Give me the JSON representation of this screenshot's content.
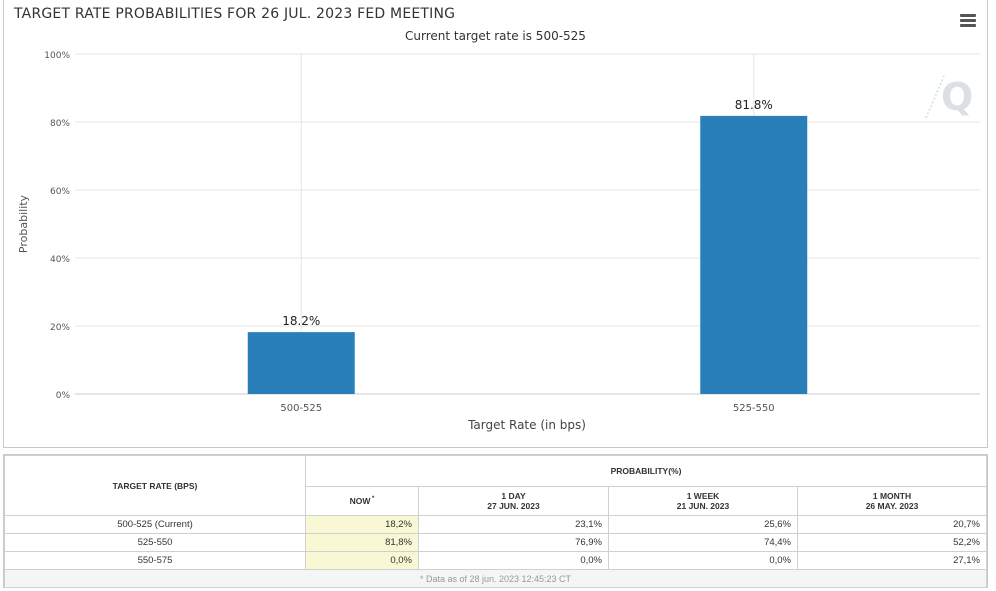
{
  "chart": {
    "title": "TARGET RATE PROBABILITIES FOR 26 JUL. 2023 FED MEETING",
    "subtitle": "Current target rate is 500-525",
    "logo": "Q"
  },
  "colors": {
    "bar": "#2980b9",
    "grid": "#e6e6e6",
    "axis": "#cccccc"
  },
  "chart_data": {
    "type": "bar",
    "categories": [
      "500-525",
      "525-550"
    ],
    "values": [
      18.2,
      81.8
    ],
    "data_labels": [
      "18.2%",
      "81.8%"
    ],
    "xlabel": "Target Rate (in bps)",
    "ylabel": "Probability",
    "ylim": [
      0,
      100
    ],
    "yticks": [
      0,
      20,
      40,
      60,
      80,
      100
    ],
    "ytick_labels": [
      "0%",
      "20%",
      "40%",
      "60%",
      "80%",
      "100%"
    ],
    "grid": true
  },
  "table": {
    "rate_header": "TARGET RATE (BPS)",
    "prob_header": "PROBABILITY(%)",
    "columns": [
      {
        "line1": "NOW",
        "line2": ""
      },
      {
        "line1": "1 DAY",
        "line2": "27 JUN. 2023"
      },
      {
        "line1": "1 WEEK",
        "line2": "21 JUN. 2023"
      },
      {
        "line1": "1 MONTH",
        "line2": "26 MAY. 2023"
      }
    ],
    "rows": [
      {
        "rate": "500-525 (Current)",
        "values": [
          "18,2%",
          "23,1%",
          "25,6%",
          "20,7%"
        ]
      },
      {
        "rate": "525-550",
        "values": [
          "81,8%",
          "76,9%",
          "74,4%",
          "52,2%"
        ]
      },
      {
        "rate": "550-575",
        "values": [
          "0,0%",
          "0,0%",
          "0,0%",
          "27,1%"
        ]
      }
    ],
    "footnote": "* Data as of 28 jun. 2023 12:45:23 CT"
  }
}
